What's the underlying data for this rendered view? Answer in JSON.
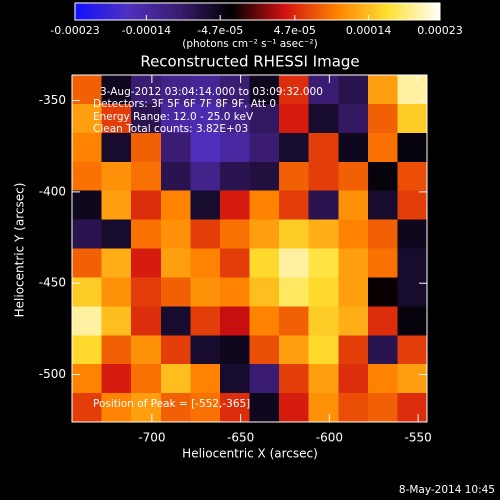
{
  "chart_data": {
    "type": "heatmap",
    "title": "Reconstructed RHESSI Image",
    "x_label": "Heliocentric X (arcsec)",
    "y_label": "Heliocentric Y (arcsec)",
    "xlim": [
      -745,
      -545
    ],
    "ylim": [
      -526,
      -336
    ],
    "xticks": [
      -700,
      -650,
      -600,
      -550
    ],
    "yticks": [
      -350,
      -400,
      -450,
      -500
    ],
    "annotations": [
      "3-Aug-2012 03:04:14.000 to 03:09:32.000",
      "Detectors: 3F 5F 6F 7F 8F 9F, Att 0",
      "Energy Range: 12.0 - 25.0 keV",
      "Clean    Total counts: 3.82E+03",
      "Position of Peak = [-552,-365]"
    ],
    "footer": "8-May-2014 10:45",
    "colorbar": {
      "label": "(photons cm⁻² s⁻¹ asec⁻²)",
      "lim": [
        -0.00023,
        0.00023
      ],
      "ticks": [
        -0.00023,
        -0.00014,
        {
          "value": -4.7e-05,
          "label": "-4.7e-05"
        },
        {
          "value": 4.7e-05,
          "label": "4.7e-05"
        },
        0.00014,
        0.00023
      ],
      "colormap": [
        "#1010ff",
        "#5030c0",
        "#3a1c70",
        "#000000",
        "#d01010",
        "#ff8000",
        "#ffe030",
        "#ffffff"
      ]
    },
    "values": [
      [
        8e-05,
        -5e-05,
        -0.0001,
        -0.00012,
        -0.00013,
        -0.0001,
        -5e-05,
        5e-05,
        -0.0001,
        -8e-05,
        0.00012,
        0.0002
      ],
      [
        0.00012,
        6e-05,
        -8e-05,
        -0.00014,
        -0.00015,
        -0.00012,
        -9e-05,
        4e-05,
        -6e-05,
        -9e-05,
        8e-05,
        0.00015
      ],
      [
        0.0001,
        -6e-05,
        8e-05,
        -0.0001,
        -0.00016,
        -0.00014,
        -0.0001,
        -6e-05,
        6e-05,
        -5e-05,
        9e-05,
        -4e-05
      ],
      [
        9e-05,
        0.00011,
        9e-05,
        -8e-05,
        -0.00012,
        -8e-05,
        -7e-05,
        8e-05,
        6e-05,
        8e-05,
        -4e-05,
        7e-05
      ],
      [
        -5e-05,
        0.00012,
        5e-05,
        0.0001,
        -6e-05,
        4e-05,
        0.0001,
        6e-05,
        -8e-05,
        0.00011,
        -6e-05,
        6e-05
      ],
      [
        -8e-05,
        -6e-05,
        9e-05,
        0.00011,
        6e-05,
        9e-05,
        0.00012,
        0.00015,
        0.00013,
        0.0001,
        8e-05,
        -5e-05
      ],
      [
        8e-05,
        0.00013,
        4e-05,
        0.00012,
        0.0001,
        6e-05,
        0.00016,
        0.0002,
        0.00017,
        0.00012,
        9e-05,
        -6e-05
      ],
      [
        0.00015,
        0.00011,
        6e-05,
        8e-05,
        0.00011,
        0.0001,
        0.00014,
        0.00018,
        0.00016,
        0.00012,
        -3e-05,
        -6e-05
      ],
      [
        0.0002,
        0.00014,
        5e-05,
        -6e-05,
        6e-05,
        3e-05,
        0.0001,
        8e-05,
        0.00015,
        0.00013,
        5e-05,
        -4e-05
      ],
      [
        0.00016,
        8e-05,
        0.00011,
        6e-05,
        -6e-05,
        -5e-05,
        7e-05,
        0.00012,
        0.00016,
        6e-05,
        -8e-05,
        6e-05
      ],
      [
        0.0001,
        4e-05,
        9e-05,
        0.00014,
        0.0001,
        -6e-05,
        -0.0001,
        6e-05,
        0.00012,
        5e-05,
        0.0001,
        0.00012
      ],
      [
        6e-05,
        0.0001,
        0.00012,
        8e-05,
        9e-05,
        5e-05,
        -5e-05,
        4e-05,
        0.00011,
        7e-05,
        8e-05,
        5e-05
      ]
    ]
  }
}
